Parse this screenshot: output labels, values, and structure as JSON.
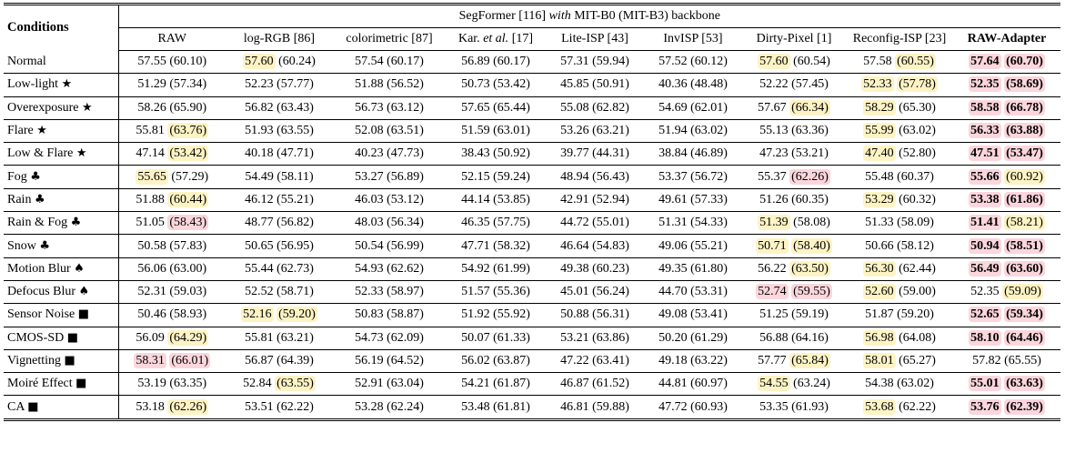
{
  "header": {
    "conditions_label": "Conditions",
    "backbone_prefix": "SegFormer [116] ",
    "backbone_italic": "with",
    "backbone_suffix": " MIT-B0 (MIT-B3) backbone"
  },
  "columns": [
    {
      "pre": "RAW",
      "it": "",
      "post": "",
      "bold": false
    },
    {
      "pre": "log-RGB [86]",
      "it": "",
      "post": "",
      "bold": false
    },
    {
      "pre": "colorimetric [87]",
      "it": "",
      "post": "",
      "bold": false
    },
    {
      "pre": "Kar. ",
      "it": "et al.",
      "post": " [17]",
      "bold": false
    },
    {
      "pre": "Lite-ISP [43]",
      "it": "",
      "post": "",
      "bold": false
    },
    {
      "pre": "InvISP [53]",
      "it": "",
      "post": "",
      "bold": false
    },
    {
      "pre": "Dirty-Pixel [1]",
      "it": "",
      "post": "",
      "bold": false
    },
    {
      "pre": "Reconfig-ISP [23]",
      "it": "",
      "post": "",
      "bold": false
    },
    {
      "pre": "RAW-Adapter",
      "it": "",
      "post": "",
      "bold": true
    }
  ],
  "rows": [
    {
      "name": "Normal",
      "sym": "",
      "cells": [
        {
          "a": "57.55",
          "b": "60.10"
        },
        {
          "a": "57.60",
          "b": "60.24",
          "ha": "y"
        },
        {
          "a": "57.54",
          "b": "60.17"
        },
        {
          "a": "56.89",
          "b": "60.17"
        },
        {
          "a": "57.31",
          "b": "59.94"
        },
        {
          "a": "57.52",
          "b": "60.12"
        },
        {
          "a": "57.60",
          "b": "60.54",
          "ha": "y"
        },
        {
          "a": "57.58",
          "b": "60.55",
          "hb": "y"
        },
        {
          "a": "57.64",
          "b": "60.70",
          "ha": "p",
          "hb": "p"
        }
      ]
    },
    {
      "name": "Low-light",
      "sym": "★",
      "cells": [
        {
          "a": "51.29",
          "b": "57.34"
        },
        {
          "a": "52.23",
          "b": "57.77"
        },
        {
          "a": "51.88",
          "b": "56.52"
        },
        {
          "a": "50.73",
          "b": "53.42"
        },
        {
          "a": "45.85",
          "b": "50.91"
        },
        {
          "a": "40.36",
          "b": "48.48"
        },
        {
          "a": "52.22",
          "b": "57.45"
        },
        {
          "a": "52.33",
          "b": "57.78",
          "ha": "y",
          "hb": "y"
        },
        {
          "a": "52.35",
          "b": "58.69",
          "ha": "p",
          "hb": "p"
        }
      ]
    },
    {
      "name": "Overexposure",
      "sym": "★",
      "cells": [
        {
          "a": "58.26",
          "b": "65.90"
        },
        {
          "a": "56.82",
          "b": "63.43"
        },
        {
          "a": "56.73",
          "b": "63.12"
        },
        {
          "a": "57.65",
          "b": "65.44"
        },
        {
          "a": "55.08",
          "b": "62.82"
        },
        {
          "a": "54.69",
          "b": "62.01"
        },
        {
          "a": "57.67",
          "b": "66.34",
          "hb": "y"
        },
        {
          "a": "58.29",
          "b": "65.30",
          "ha": "y"
        },
        {
          "a": "58.58",
          "b": "66.78",
          "ha": "p",
          "hb": "p"
        }
      ]
    },
    {
      "name": "Flare",
      "sym": "★",
      "cells": [
        {
          "a": "55.81",
          "b": "63.76",
          "hb": "y"
        },
        {
          "a": "51.93",
          "b": "63.55"
        },
        {
          "a": "52.08",
          "b": "63.51"
        },
        {
          "a": "51.59",
          "b": "63.01"
        },
        {
          "a": "53.26",
          "b": "63.21"
        },
        {
          "a": "51.94",
          "b": "63.02"
        },
        {
          "a": "55.13",
          "b": "63.36"
        },
        {
          "a": "55.99",
          "b": "63.02",
          "ha": "y"
        },
        {
          "a": "56.33",
          "b": "63.88",
          "ha": "p",
          "hb": "p"
        }
      ]
    },
    {
      "name": "Low & Flare",
      "sym": "★",
      "cells": [
        {
          "a": "47.14",
          "b": "53.42",
          "hb": "y"
        },
        {
          "a": "40.18",
          "b": "47.71"
        },
        {
          "a": "40.23",
          "b": "47.73"
        },
        {
          "a": "38.43",
          "b": "50.92"
        },
        {
          "a": "39.77",
          "b": "44.31"
        },
        {
          "a": "38.84",
          "b": "46.89"
        },
        {
          "a": "47.23",
          "b": "53.21"
        },
        {
          "a": "47.40",
          "b": "52.80",
          "ha": "y"
        },
        {
          "a": "47.51",
          "b": "53.47",
          "ha": "p",
          "hb": "p"
        }
      ]
    },
    {
      "name": "Fog",
      "sym": "♣",
      "cells": [
        {
          "a": "55.65",
          "b": "57.29",
          "ha": "y"
        },
        {
          "a": "54.49",
          "b": "58.11"
        },
        {
          "a": "53.27",
          "b": "56.89"
        },
        {
          "a": "52.15",
          "b": "59.24"
        },
        {
          "a": "48.94",
          "b": "56.43"
        },
        {
          "a": "53.37",
          "b": "56.72"
        },
        {
          "a": "55.37",
          "b": "62.26",
          "hb": "p"
        },
        {
          "a": "55.48",
          "b": "60.37"
        },
        {
          "a": "55.66",
          "b": "60.92",
          "ha": "p",
          "hb": "y"
        }
      ]
    },
    {
      "name": "Rain",
      "sym": "♣",
      "cells": [
        {
          "a": "51.88",
          "b": "60.44",
          "hb": "y"
        },
        {
          "a": "46.12",
          "b": "55.21"
        },
        {
          "a": "46.03",
          "b": "53.12"
        },
        {
          "a": "44.14",
          "b": "53.85"
        },
        {
          "a": "42.91",
          "b": "52.94"
        },
        {
          "a": "49.61",
          "b": "57.33"
        },
        {
          "a": "51.26",
          "b": "60.35"
        },
        {
          "a": "53.29",
          "b": "60.32",
          "ha": "y"
        },
        {
          "a": "53.38",
          "b": "61.86",
          "ha": "p",
          "hb": "p"
        }
      ]
    },
    {
      "name": "Rain & Fog",
      "sym": "♣",
      "cells": [
        {
          "a": "51.05",
          "b": "58.43",
          "hb": "p"
        },
        {
          "a": "48.77",
          "b": "56.82"
        },
        {
          "a": "48.03",
          "b": "56.34"
        },
        {
          "a": "46.35",
          "b": "57.75"
        },
        {
          "a": "44.72",
          "b": "55.01"
        },
        {
          "a": "51.31",
          "b": "54.33"
        },
        {
          "a": "51.39",
          "b": "58.08",
          "ha": "y"
        },
        {
          "a": "51.33",
          "b": "58.09"
        },
        {
          "a": "51.41",
          "b": "58.21",
          "ha": "p",
          "hb": "y"
        }
      ]
    },
    {
      "name": "Snow",
      "sym": "♣",
      "cells": [
        {
          "a": "50.58",
          "b": "57.83"
        },
        {
          "a": "50.65",
          "b": "56.95"
        },
        {
          "a": "50.54",
          "b": "56.99"
        },
        {
          "a": "47.71",
          "b": "58.32"
        },
        {
          "a": "46.64",
          "b": "54.83"
        },
        {
          "a": "49.06",
          "b": "55.21"
        },
        {
          "a": "50.71",
          "b": "58.40",
          "ha": "y",
          "hb": "y"
        },
        {
          "a": "50.66",
          "b": "58.12"
        },
        {
          "a": "50.94",
          "b": "58.51",
          "ha": "p",
          "hb": "p"
        }
      ]
    },
    {
      "name": "Motion Blur",
      "sym": "♠",
      "cells": [
        {
          "a": "56.06",
          "b": "63.00"
        },
        {
          "a": "55.44",
          "b": "62.73"
        },
        {
          "a": "54.93",
          "b": "62.62"
        },
        {
          "a": "54.92",
          "b": "61.99"
        },
        {
          "a": "49.38",
          "b": "60.23"
        },
        {
          "a": "49.35",
          "b": "61.80"
        },
        {
          "a": "56.22",
          "b": "63.50",
          "hb": "y"
        },
        {
          "a": "56.30",
          "b": "62.44",
          "ha": "y"
        },
        {
          "a": "56.49",
          "b": "63.60",
          "ha": "p",
          "hb": "p"
        }
      ]
    },
    {
      "name": "Defocus Blur",
      "sym": "♠",
      "cells": [
        {
          "a": "52.31",
          "b": "59.03"
        },
        {
          "a": "52.52",
          "b": "58.71"
        },
        {
          "a": "52.33",
          "b": "58.97"
        },
        {
          "a": "51.57",
          "b": "55.36"
        },
        {
          "a": "45.01",
          "b": "56.24"
        },
        {
          "a": "44.70",
          "b": "53.31"
        },
        {
          "a": "52.74",
          "b": "59.55",
          "ha": "p",
          "hb": "p"
        },
        {
          "a": "52.60",
          "b": "59.00",
          "ha": "y"
        },
        {
          "a": "52.35",
          "b": "59.09",
          "hb": "y"
        }
      ]
    },
    {
      "name": "Sensor Noise",
      "sym": "■",
      "cells": [
        {
          "a": "50.46",
          "b": "58.93"
        },
        {
          "a": "52.16",
          "b": "59.20",
          "ha": "y",
          "hb": "y"
        },
        {
          "a": "50.83",
          "b": "58.87"
        },
        {
          "a": "51.92",
          "b": "55.92"
        },
        {
          "a": "50.88",
          "b": "56.31"
        },
        {
          "a": "49.08",
          "b": "53.41"
        },
        {
          "a": "51.25",
          "b": "59.19"
        },
        {
          "a": "51.87",
          "b": "59.20"
        },
        {
          "a": "52.65",
          "b": "59.34",
          "ha": "p",
          "hb": "p"
        }
      ]
    },
    {
      "name": "CMOS-SD",
      "sym": "■",
      "cells": [
        {
          "a": "56.09",
          "b": "64.29",
          "hb": "y"
        },
        {
          "a": "55.81",
          "b": "63.21"
        },
        {
          "a": "54.73",
          "b": "62.09"
        },
        {
          "a": "50.07",
          "b": "61.33"
        },
        {
          "a": "53.21",
          "b": "63.86"
        },
        {
          "a": "50.20",
          "b": "61.29"
        },
        {
          "a": "56.88",
          "b": "64.16"
        },
        {
          "a": "56.98",
          "b": "64.08",
          "ha": "y"
        },
        {
          "a": "58.10",
          "b": "64.46",
          "ha": "p",
          "hb": "p"
        }
      ]
    },
    {
      "name": "Vignetting",
      "sym": "■",
      "cells": [
        {
          "a": "58.31",
          "b": "66.01",
          "ha": "p",
          "hb": "p"
        },
        {
          "a": "56.87",
          "b": "64.39"
        },
        {
          "a": "56.19",
          "b": "64.52"
        },
        {
          "a": "56.02",
          "b": "63.87"
        },
        {
          "a": "47.22",
          "b": "63.41"
        },
        {
          "a": "49.18",
          "b": "63.22"
        },
        {
          "a": "57.77",
          "b": "65.84",
          "hb": "y"
        },
        {
          "a": "58.01",
          "b": "65.27",
          "ha": "y"
        },
        {
          "a": "57.82",
          "b": "65.55"
        }
      ]
    },
    {
      "name": "Moiré Effect",
      "sym": "■",
      "cells": [
        {
          "a": "53.19",
          "b": "63.35"
        },
        {
          "a": "52.84",
          "b": "63.55",
          "hb": "y"
        },
        {
          "a": "52.91",
          "b": "63.04"
        },
        {
          "a": "54.21",
          "b": "61.87"
        },
        {
          "a": "46.87",
          "b": "61.52"
        },
        {
          "a": "44.81",
          "b": "60.97"
        },
        {
          "a": "54.55",
          "b": "63.24",
          "ha": "y"
        },
        {
          "a": "54.38",
          "b": "63.02"
        },
        {
          "a": "55.01",
          "b": "63.63",
          "ha": "p",
          "hb": "p"
        }
      ]
    },
    {
      "name": "CA",
      "sym": "■",
      "cells": [
        {
          "a": "53.18",
          "b": "62.26",
          "hb": "y"
        },
        {
          "a": "53.51",
          "b": "62.22"
        },
        {
          "a": "53.28",
          "b": "62.24"
        },
        {
          "a": "53.48",
          "b": "61.81"
        },
        {
          "a": "46.81",
          "b": "59.88"
        },
        {
          "a": "47.72",
          "b": "60.93"
        },
        {
          "a": "53.35",
          "b": "61.93"
        },
        {
          "a": "53.68",
          "b": "62.22",
          "ha": "y"
        },
        {
          "a": "53.76",
          "b": "62.39",
          "ha": "p",
          "hb": "p"
        }
      ]
    }
  ],
  "colors": {
    "best_highlight": "#fbd6dc",
    "second_highlight": "#fdf3c4"
  }
}
